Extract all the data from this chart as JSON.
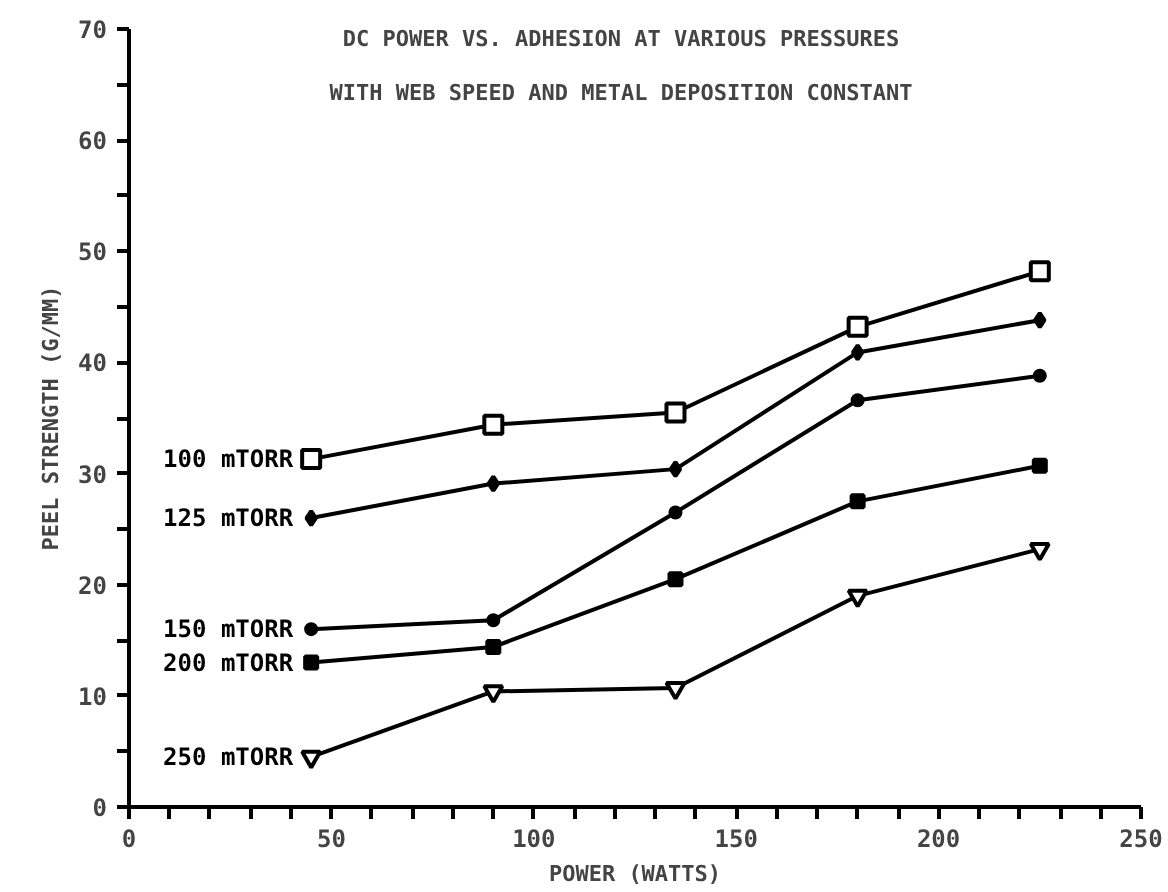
{
  "chart_data": {
    "type": "line",
    "title": "DC POWER VS. ADHESION AT VARIOUS PRESSURES",
    "subtitle": "WITH WEB SPEED AND METAL DEPOSITION CONSTANT",
    "xlabel": "POWER (WATTS)",
    "ylabel": "PEEL STRENGTH (G/MM)",
    "x": [
      45,
      90,
      135,
      180,
      225
    ],
    "series": [
      {
        "name": "100 mTORR",
        "color": "#000000",
        "marker": "square",
        "values": [
          31.3,
          34.4,
          35.5,
          43.2,
          48.2
        ]
      },
      {
        "name": "125 mTORR",
        "color": "#000000",
        "marker": "diamond",
        "values": [
          26.0,
          29.1,
          30.4,
          40.9,
          43.8
        ]
      },
      {
        "name": "150 mTORR",
        "color": "#000000",
        "marker": "circle",
        "values": [
          16.0,
          16.8,
          26.5,
          36.6,
          38.8
        ]
      },
      {
        "name": "200 mTORR",
        "color": "#000000",
        "marker": "square",
        "values": [
          13.0,
          14.4,
          20.5,
          27.5,
          30.7
        ]
      },
      {
        "name": "250 mTORR",
        "color": "#000000",
        "marker": "triangle",
        "values": [
          4.5,
          10.4,
          10.7,
          19.0,
          23.2
        ]
      }
    ],
    "xlim": [
      0,
      250
    ],
    "ylim": [
      0,
      70
    ],
    "xticks": [
      0,
      {
        "value": 10,
        "label": null
      },
      {
        "value": 20,
        "label": null
      },
      {
        "value": 30,
        "label": null
      },
      {
        "value": 40,
        "label": null
      },
      50,
      {
        "value": 60,
        "label": null
      },
      {
        "value": 70,
        "label": null
      },
      {
        "value": 80,
        "label": null
      },
      {
        "value": 90,
        "label": null
      },
      100,
      {
        "value": 110,
        "label": null
      },
      {
        "value": 120,
        "label": null
      },
      {
        "value": 130,
        "label": null
      },
      {
        "value": 140,
        "label": null
      },
      150,
      {
        "value": 160,
        "label": null
      },
      {
        "value": 170,
        "label": null
      },
      {
        "value": 180,
        "label": null
      },
      {
        "value": 190,
        "label": null
      },
      200,
      {
        "value": 210,
        "label": null
      },
      {
        "value": 220,
        "label": null
      },
      {
        "value": 230,
        "label": null
      },
      {
        "value": 240,
        "label": null
      },
      250
    ],
    "yticks": [
      0,
      {
        "value": 5,
        "label": null
      },
      10,
      {
        "value": 15,
        "label": null
      },
      20,
      {
        "value": 25,
        "label": null
      },
      30,
      {
        "value": 35,
        "label": null
      },
      40,
      {
        "value": 45,
        "label": null
      },
      50,
      {
        "value": 55,
        "label": null
      },
      60,
      {
        "value": 65,
        "label": null
      },
      70
    ],
    "grid": false,
    "legend": false,
    "line_style": "solid"
  }
}
